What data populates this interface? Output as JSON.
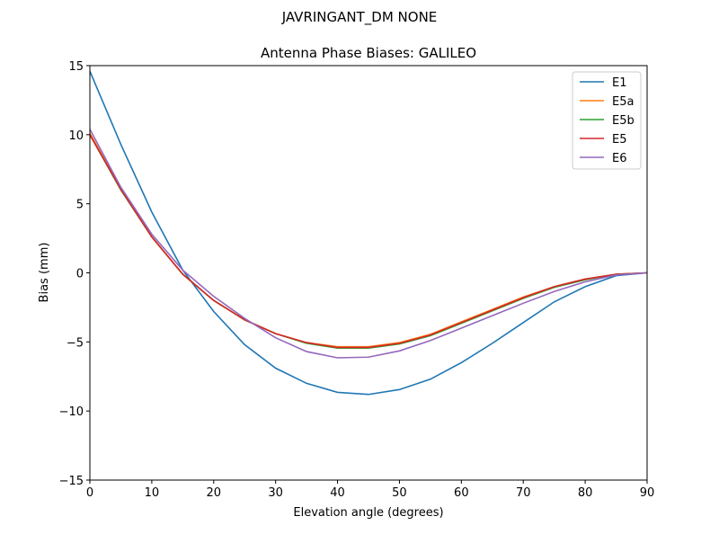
{
  "suptitle": "JAVRINGANT_DM   NONE",
  "chart_data": {
    "type": "line",
    "title": "Antenna Phase Biases: GALILEO",
    "xlabel": "Elevation angle (degrees)",
    "ylabel": "Bias (mm)",
    "xlim": [
      0,
      90
    ],
    "ylim": [
      -15,
      15
    ],
    "xticks": [
      0,
      10,
      20,
      30,
      40,
      50,
      60,
      70,
      80,
      90
    ],
    "yticks": [
      -15,
      -10,
      -5,
      0,
      5,
      10,
      15
    ],
    "ytick_labels": [
      "−15",
      "−10",
      "−5",
      "0",
      "5",
      "10",
      "15"
    ],
    "grid": false,
    "legend_position": "top-right",
    "x": [
      0,
      5,
      10,
      15,
      20,
      25,
      30,
      35,
      40,
      45,
      50,
      55,
      60,
      65,
      70,
      75,
      80,
      85,
      90
    ],
    "series": [
      {
        "name": "E1",
        "color": "#1f77b4",
        "values": [
          14.6,
          9.3,
          4.4,
          0.2,
          -2.8,
          -5.2,
          -6.9,
          -8.0,
          -8.65,
          -8.8,
          -8.45,
          -7.7,
          -6.5,
          -5.1,
          -3.6,
          -2.1,
          -1.0,
          -0.2,
          0
        ]
      },
      {
        "name": "E5a",
        "color": "#ff7f0e",
        "values": [
          10.1,
          6.1,
          2.6,
          -0.1,
          -2.0,
          -3.4,
          -4.4,
          -5.05,
          -5.35,
          -5.35,
          -5.05,
          -4.45,
          -3.55,
          -2.65,
          -1.75,
          -1.0,
          -0.45,
          -0.1,
          0
        ]
      },
      {
        "name": "E5b",
        "color": "#2ca02c",
        "values": [
          10.0,
          6.0,
          2.6,
          -0.1,
          -2.0,
          -3.4,
          -4.4,
          -5.1,
          -5.45,
          -5.45,
          -5.15,
          -4.55,
          -3.65,
          -2.75,
          -1.85,
          -1.05,
          -0.5,
          -0.1,
          0
        ]
      },
      {
        "name": "E5",
        "color": "#d62728",
        "values": [
          10.0,
          6.05,
          2.6,
          -0.1,
          -2.0,
          -3.4,
          -4.4,
          -5.05,
          -5.4,
          -5.4,
          -5.1,
          -4.5,
          -3.6,
          -2.7,
          -1.8,
          -1.0,
          -0.45,
          -0.1,
          0
        ]
      },
      {
        "name": "E6",
        "color": "#9467bd",
        "values": [
          10.4,
          6.2,
          2.8,
          0.2,
          -1.7,
          -3.3,
          -4.7,
          -5.7,
          -6.15,
          -6.1,
          -5.65,
          -4.9,
          -4.0,
          -3.1,
          -2.2,
          -1.35,
          -0.65,
          -0.15,
          0
        ]
      }
    ]
  }
}
